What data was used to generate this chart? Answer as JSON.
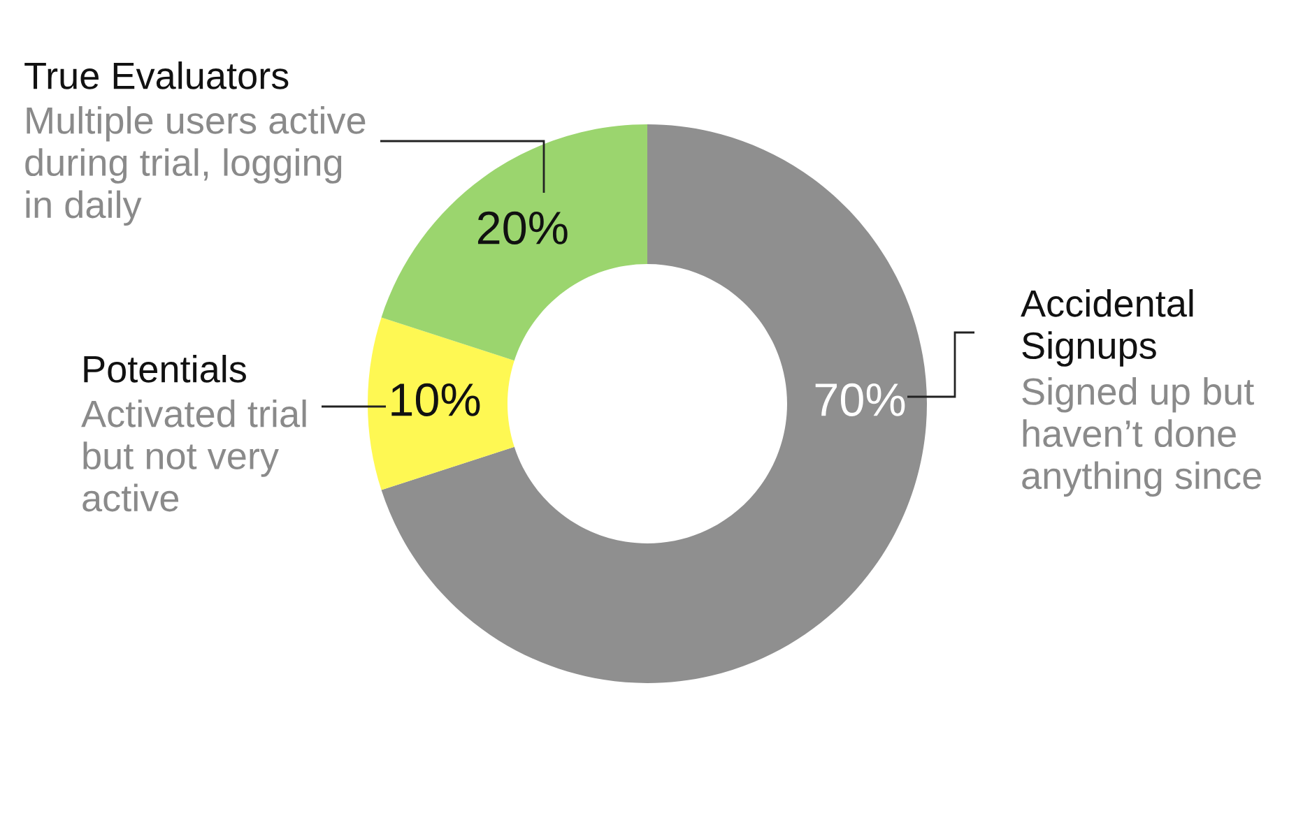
{
  "chart_data": {
    "type": "donut",
    "categories": [
      "Accidental Signups",
      "Potentials",
      "True Evaluators"
    ],
    "values": [
      70,
      10,
      20
    ],
    "colors": [
      "#8f8f8f",
      "#fef853",
      "#9bd56e"
    ],
    "value_labels": [
      "70%",
      "10%",
      "20%"
    ],
    "annotations": [
      "Signed up but haven’t done anything since",
      "Activated trial but not very active",
      "Multiple users active during trial, logging in daily"
    ]
  }
}
